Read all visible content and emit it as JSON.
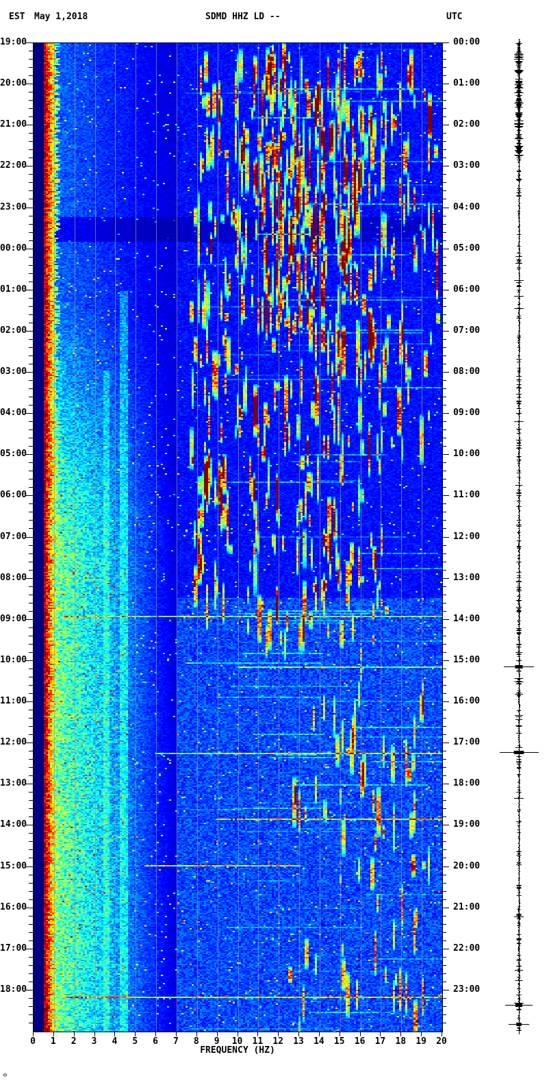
{
  "header": {
    "tz_left": "EST",
    "date": "May 1,2018",
    "station": "SDMD HHZ LD --",
    "tz_right": "UTC"
  },
  "axes": {
    "xlabel": "FREQUENCY (HZ)",
    "left_times": [
      "19:00",
      "20:00",
      "21:00",
      "22:00",
      "23:00",
      "00:00",
      "01:00",
      "02:00",
      "03:00",
      "04:00",
      "05:00",
      "06:00",
      "07:00",
      "08:00",
      "09:00",
      "10:00",
      "11:00",
      "12:00",
      "13:00",
      "14:00",
      "15:00",
      "16:00",
      "17:00",
      "18:00"
    ],
    "right_times": [
      "00:00",
      "01:00",
      "02:00",
      "03:00",
      "04:00",
      "05:00",
      "06:00",
      "07:00",
      "08:00",
      "09:00",
      "10:00",
      "11:00",
      "12:00",
      "13:00",
      "14:00",
      "15:00",
      "16:00",
      "17:00",
      "18:00",
      "19:00",
      "20:00",
      "21:00",
      "22:00",
      "23:00"
    ],
    "freq_ticks": [
      "0",
      "1",
      "2",
      "3",
      "4",
      "5",
      "6",
      "7",
      "8",
      "9",
      "10",
      "11",
      "12",
      "13",
      "14",
      "15",
      "16",
      "17",
      "18",
      "19",
      "20"
    ]
  },
  "chart_data": {
    "type": "heatmap",
    "title": "SDMD HHZ LD --",
    "date": "May 1,2018",
    "xlabel": "FREQUENCY (HZ)",
    "x_range_hz": [
      0,
      20
    ],
    "y_left_axis": {
      "timezone": "EST",
      "start": "19:00",
      "end": "18:00",
      "major_tick_min": 60,
      "minor_tick_min": 12
    },
    "y_right_axis": {
      "timezone": "UTC",
      "start": "00:00",
      "end": "23:00"
    },
    "colormap": "jet",
    "gridlines": {
      "vertical_every_hz": 1,
      "color": "#969696"
    },
    "features": [
      "Flat dark-navy band below 0.5 Hz (no data)",
      "Intense red/orange microseism band 0.5-1.2 Hz persisting the full 24 h with ragged rainbow edge",
      "Quiet deep-blue background above 6 Hz from 19:00 to ~04:00 EST with darker band near 23:20-23:50 EST",
      "Dense short vertical burst streaks (cyan/yellow/red) 8-20 Hz, strongest 19:30-23:30 EST and 04:00-08:00 EST, sparse near bottom",
      "Daytime cultural noise: broad cyan/green energy 1-6 Hz strengthening after ~04:00 EST to end of plot",
      "Persistent narrowband vertical stripes near 3.5 Hz and 4.4 Hz in lower two-thirds",
      "Thin broadband horizontal event lines near 09:05, 12:20, 14:05, 15:10 and 18:20 EST",
      "Compressed vertical seismogram trace at far right: dense 00:00-02:30 UTC, large spikes near 15:10 and 17:10 UTC and near the bottom"
    ],
    "render": {
      "seed": 1337,
      "cell": [
        3,
        2
      ],
      "microseism": {
        "f_start": 0.5,
        "edge_hz": 1.0,
        "edge_jitter_hz": 0.35
      },
      "low_band": {
        "t_ramp": [
          0.26,
          0.5
        ],
        "base_early": 0.15,
        "base_late": 0.44,
        "f_max": 7
      },
      "stripes": [
        {
          "f": [
            3.38,
            3.72
          ],
          "t_start": 0.33,
          "amp": 0.1
        },
        {
          "f": [
            4.25,
            4.62
          ],
          "t_start": 0.25,
          "amp": 0.13
        }
      ],
      "right_band": {
        "f_min": 7,
        "t_split": 0.56,
        "early": 0.05,
        "late": 0.11
      },
      "dark_band": {
        "t": [
          0.175,
          0.2
        ],
        "factor": 0.55
      },
      "streak_regions": [
        {
          "t": [
            0.005,
            0.4
          ],
          "f": [
            7.6,
            19.8
          ],
          "count": 300,
          "vmax": 1.0
        },
        {
          "t": [
            0.0,
            0.3
          ],
          "f": [
            10.8,
            16.5
          ],
          "count": 180,
          "vmax": 1.05
        },
        {
          "t": [
            0.4,
            0.6
          ],
          "f": [
            10.5,
            17.5
          ],
          "count": 90,
          "vmax": 0.9
        },
        {
          "t": [
            0.4,
            0.56
          ],
          "f": [
            7.8,
            9.6
          ],
          "count": 40,
          "vmax": 0.8
        },
        {
          "t": [
            0.6,
            0.72
          ],
          "f": [
            13.0,
            19.0
          ],
          "count": 20,
          "vmax": 0.7
        },
        {
          "t": [
            0.72,
            1.0
          ],
          "f": [
            12.5,
            19.6
          ],
          "count": 45,
          "vmax": 0.9
        }
      ],
      "hlines": [
        {
          "t": 0.193,
          "f": [
            11.0,
            13.5
          ],
          "v": 0.4
        },
        {
          "t": 0.579,
          "f": [
            1.5,
            20.0
          ],
          "v": 0.42
        },
        {
          "t": 0.631,
          "f": [
            10.0,
            20.0
          ],
          "v": 0.35
        },
        {
          "t": 0.718,
          "f": [
            6.0,
            20.0
          ],
          "v": 0.45
        },
        {
          "t": 0.785,
          "f": [
            9.0,
            20.0
          ],
          "v": 0.5
        },
        {
          "t": 0.832,
          "f": [
            5.5,
            13.0
          ],
          "v": 0.5
        },
        {
          "t": 0.965,
          "f": [
            1.5,
            20.0
          ],
          "v": 0.5
        }
      ]
    },
    "trace": {
      "dense_frac": 0.117,
      "spikes": [
        {
          "y_frac": 0.631,
          "hw": 22
        },
        {
          "y_frac": 0.659,
          "hw": 6
        },
        {
          "y_frac": 0.718,
          "hw": 29
        },
        {
          "y_frac": 0.884,
          "hw": 7
        },
        {
          "y_frac": 0.938,
          "hw": 6
        },
        {
          "y_frac": 0.974,
          "hw": 20
        },
        {
          "y_frac": 0.993,
          "hw": 15
        }
      ]
    }
  }
}
